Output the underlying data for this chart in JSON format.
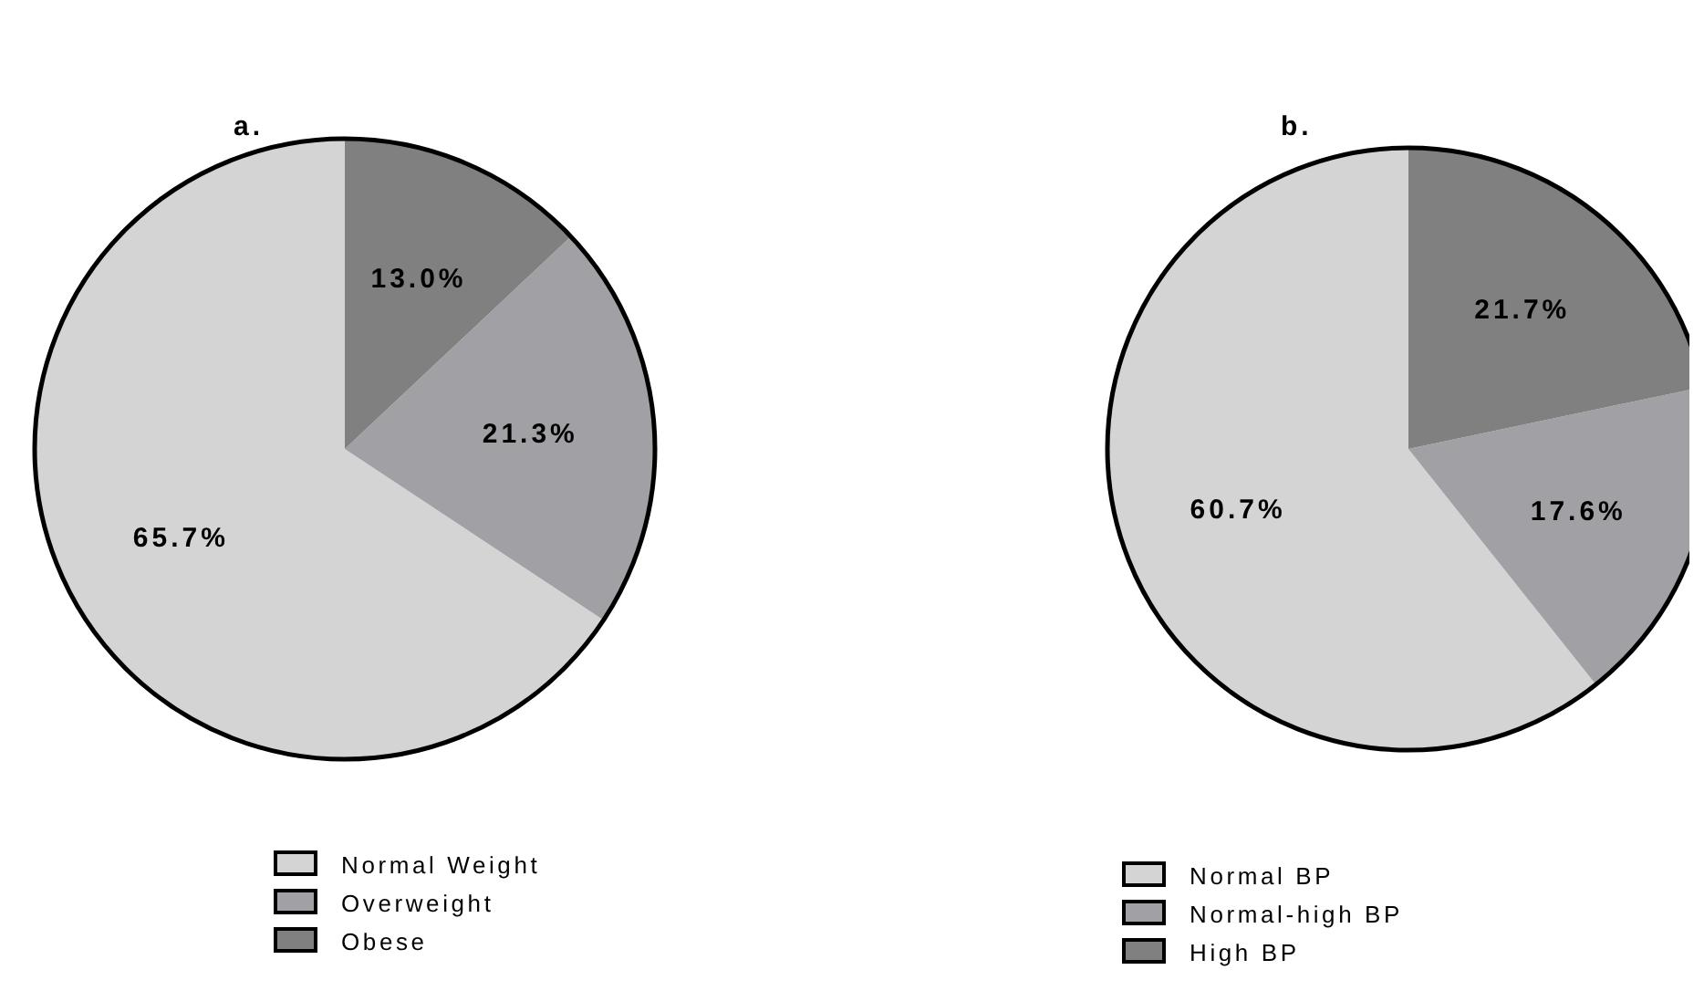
{
  "chart_data": [
    {
      "type": "pie",
      "title": "a.",
      "categories": [
        "Normal Weight",
        "Overweight",
        "Obese"
      ],
      "values": [
        65.7,
        21.3,
        13.0
      ],
      "colors": [
        "#d4d4d4",
        "#a1a1a5",
        "#808080"
      ],
      "value_labels": [
        "65.7%",
        "21.3%",
        "13.0%"
      ],
      "legend": "bottom"
    },
    {
      "type": "pie",
      "title": "b.",
      "categories": [
        "Normal BP",
        "Normal-high BP",
        "High BP"
      ],
      "values": [
        60.7,
        17.6,
        21.7
      ],
      "colors": [
        "#d4d4d4",
        "#a1a1a5",
        "#808080"
      ],
      "value_labels": [
        "60.7%",
        "17.6%",
        "21.7%"
      ],
      "legend": "bottom"
    }
  ]
}
